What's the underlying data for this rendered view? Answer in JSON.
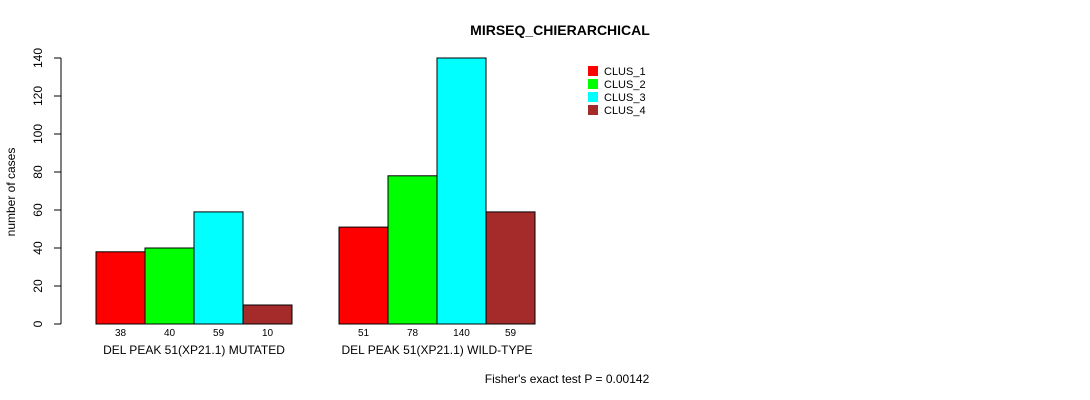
{
  "chart_data": {
    "type": "bar",
    "title": "MIRSEQ_CHIERARCHICAL",
    "xlabel": "",
    "ylabel": "number of cases",
    "ylim": [
      0,
      140
    ],
    "yticks": [
      0,
      20,
      40,
      60,
      80,
      100,
      120,
      140
    ],
    "categories": [
      "DEL PEAK 51(XP21.1) MUTATED",
      "DEL PEAK 51(XP21.1) WILD-TYPE"
    ],
    "series": [
      {
        "name": "CLUS_1",
        "color": "#ff0000",
        "values": [
          38,
          51
        ]
      },
      {
        "name": "CLUS_2",
        "color": "#00ff00",
        "values": [
          40,
          78
        ]
      },
      {
        "name": "CLUS_3",
        "color": "#00ffff",
        "values": [
          59,
          140
        ]
      },
      {
        "name": "CLUS_4",
        "color": "#a52a2a",
        "values": [
          10,
          59
        ]
      }
    ],
    "legend_position": "top-right",
    "footnote": "Fisher's exact test P = 0.00142"
  }
}
